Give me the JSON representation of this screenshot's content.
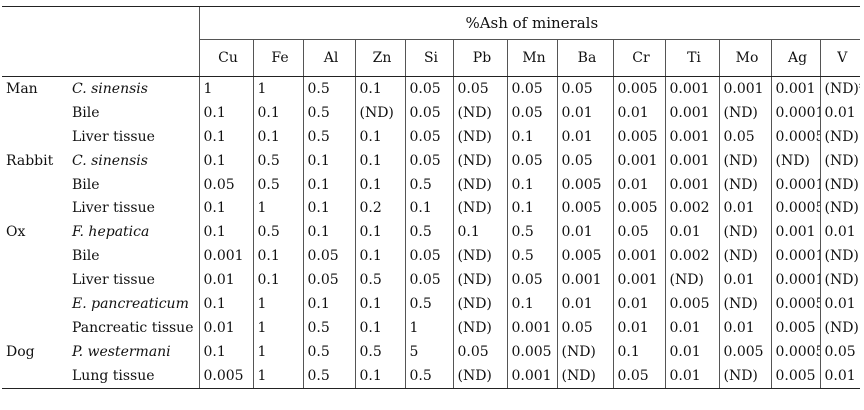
{
  "header": {
    "title": "%Ash of minerals",
    "columns": [
      "Cu",
      "Fe",
      "Al",
      "Zn",
      "Si",
      "Pb",
      "Mn",
      "Ba",
      "Cr",
      "Ti",
      "Mo",
      "Ag",
      "V"
    ]
  },
  "rows": [
    {
      "host": "Man",
      "sample": "C. sinensis",
      "italic": true,
      "values": [
        "1",
        "1",
        "0.5",
        "0.1",
        "0.05",
        "0.05",
        "0.05",
        "0.05",
        "0.005",
        "0.001",
        "0.001",
        "0.001",
        "(ND)*"
      ]
    },
    {
      "host": "",
      "sample": "Bile",
      "italic": false,
      "values": [
        "0.1",
        "0.1",
        "0.5",
        "(ND)",
        "0.05",
        "(ND)",
        "0.05",
        "0.01",
        "0.01",
        "0.001",
        "(ND)",
        "0.0001",
        "0.01"
      ]
    },
    {
      "host": "",
      "sample": "Liver tissue",
      "italic": false,
      "values": [
        "0.1",
        "0.1",
        "0.5",
        "0.1",
        "0.05",
        "(ND)",
        "0.1",
        "0.01",
        "0.005",
        "0.001",
        "0.05",
        "0.0005",
        "(ND)"
      ]
    },
    {
      "host": "Rabbit",
      "sample": "C. sinensis",
      "italic": true,
      "values": [
        "0.1",
        "0.5",
        "0.1",
        "0.1",
        "0.05",
        "(ND)",
        "0.05",
        "0.05",
        "0.001",
        "0.001",
        "(ND)",
        "(ND)",
        "(ND)"
      ]
    },
    {
      "host": "",
      "sample": "Bile",
      "italic": false,
      "values": [
        "0.05",
        "0.5",
        "0.1",
        "0.1",
        "0.5",
        "(ND)",
        "0.1",
        "0.005",
        "0.01",
        "0.001",
        "(ND)",
        "0.0001",
        "(ND)"
      ]
    },
    {
      "host": "",
      "sample": "Liver tissue",
      "italic": false,
      "values": [
        "0.1",
        "1",
        "0.1",
        "0.2",
        "0.1",
        "(ND)",
        "0.1",
        "0.005",
        "0.005",
        "0.002",
        "0.01",
        "0.0005",
        "(ND)"
      ]
    },
    {
      "host": "Ox",
      "sample": "F. hepatica",
      "italic": true,
      "values": [
        "0.1",
        "0.5",
        "0.1",
        "0.1",
        "0.5",
        "0.1",
        "0.5",
        "0.01",
        "0.05",
        "0.01",
        "(ND)",
        "0.001",
        "0.01"
      ]
    },
    {
      "host": "",
      "sample": "Bile",
      "italic": false,
      "values": [
        "0.001",
        "0.1",
        "0.05",
        "0.1",
        "0.05",
        "(ND)",
        "0.5",
        "0.005",
        "0.001",
        "0.002",
        "(ND)",
        "0.0001",
        "(ND)"
      ]
    },
    {
      "host": "",
      "sample": "Liver tissue",
      "italic": false,
      "values": [
        "0.01",
        "0.1",
        "0.05",
        "0.5",
        "0.05",
        "(ND)",
        "0.05",
        "0.001",
        "0.001",
        "(ND)",
        "0.01",
        "0.0001",
        "(ND)"
      ]
    },
    {
      "host": "",
      "sample": "E. pancreaticum",
      "italic": true,
      "values": [
        "0.1",
        "1",
        "0.1",
        "0.1",
        "0.5",
        "(ND)",
        "0.1",
        "0.01",
        "0.01",
        "0.005",
        "(ND)",
        "0.0005",
        "0.01"
      ]
    },
    {
      "host": "",
      "sample": "Pancreatic tissue",
      "italic": false,
      "values": [
        "0.01",
        "1",
        "0.5",
        "0.1",
        "1",
        "(ND)",
        "0.001",
        "0.05",
        "0.01",
        "0.01",
        "0.01",
        "0.005",
        "(ND)"
      ]
    },
    {
      "host": "Dog",
      "sample": "P. westermani",
      "italic": true,
      "values": [
        "0.1",
        "1",
        "0.5",
        "0.5",
        "5",
        "0.05",
        "0.005",
        "(ND)",
        "0.1",
        "0.01",
        "0.005",
        "0.0005",
        "0.05"
      ]
    },
    {
      "host": "",
      "sample": "Lung tissue",
      "italic": false,
      "values": [
        "0.005",
        "1",
        "0.5",
        "0.1",
        "0.5",
        "(ND)",
        "0.001",
        "(ND)",
        "0.05",
        "0.01",
        "(ND)",
        "0.005",
        "0.01"
      ]
    }
  ]
}
